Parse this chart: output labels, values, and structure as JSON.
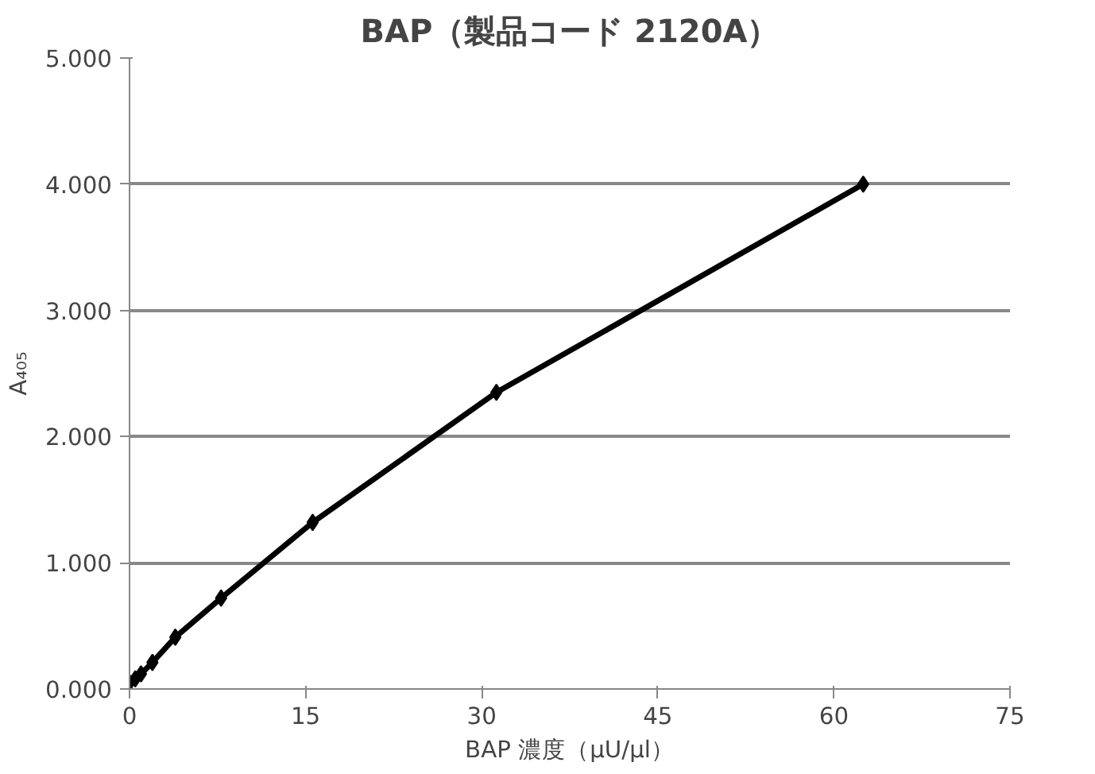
{
  "chart_data": {
    "type": "line",
    "title": "BAP（製品コード 2120A）",
    "xlabel": "BAP 濃度（μU/μl）",
    "ylabel": "A₄₀₅",
    "x": [
      0,
      0.49,
      0.98,
      1.95,
      3.9,
      7.8,
      15.6,
      31.25,
      62.5
    ],
    "series": [
      {
        "color": "#000000",
        "values": [
          0.05,
          0.08,
          0.12,
          0.21,
          0.41,
          0.72,
          1.32,
          2.35,
          4.0
        ]
      }
    ],
    "xlim": [
      0,
      75
    ],
    "xticks": [
      0,
      15,
      30,
      45,
      60,
      75
    ],
    "ylim": [
      0,
      5
    ],
    "yticks": [
      {
        "value": 0,
        "label": "0.000"
      },
      {
        "value": 1,
        "label": "1.000"
      },
      {
        "value": 2,
        "label": "2.000"
      },
      {
        "value": 3,
        "label": "3.000"
      },
      {
        "value": 4,
        "label": "4.000"
      },
      {
        "value": 5,
        "label": "5.000"
      }
    ],
    "grid": "y",
    "marker": "diamond",
    "line_style": "solid"
  }
}
